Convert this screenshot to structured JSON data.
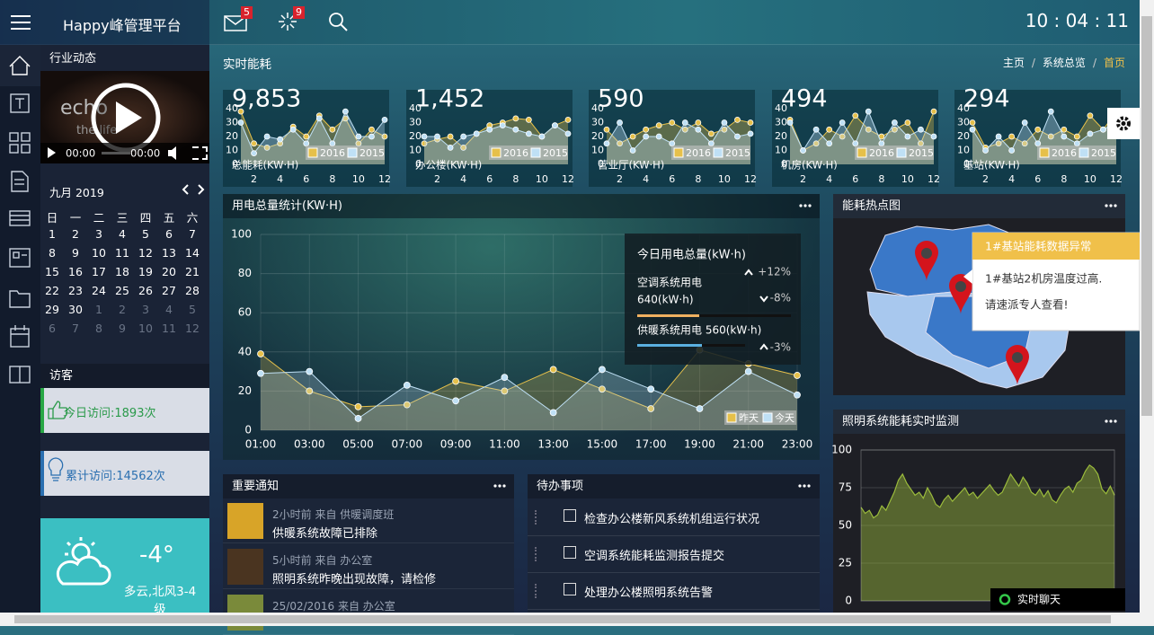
{
  "header": {
    "brand": "Happy峰管理平台",
    "mail_badge": "5",
    "alert_badge": "9",
    "clock": "10 : 04 : 11"
  },
  "sidebar": {
    "news_title": "行业动态",
    "video": {
      "caption": [
        "echo",
        "the life"
      ],
      "current": "00:00",
      "duration": "00:00"
    },
    "calendar": {
      "month": "九月 2019",
      "weekdays": [
        "日",
        "一",
        "二",
        "三",
        "四",
        "五",
        "六"
      ],
      "days": [
        1,
        2,
        3,
        4,
        5,
        6,
        7,
        8,
        9,
        10,
        11,
        12,
        13,
        14,
        15,
        16,
        17,
        18,
        19,
        20,
        21,
        22,
        23,
        24,
        25,
        26,
        27,
        28,
        29,
        30
      ],
      "next_month_days": [
        1,
        2,
        3,
        4,
        5,
        6,
        7,
        8,
        9,
        10,
        11,
        12
      ]
    },
    "visitors": {
      "title": "访客",
      "today": "今日访问:1893次",
      "total": "累计访问:14562次"
    },
    "weather": {
      "temperature": "-4°",
      "description": "多云,北风3-4级"
    }
  },
  "section": {
    "title": "实时能耗",
    "breadcrumb": [
      "主页",
      "系统总览",
      "首页"
    ],
    "separator": "/"
  },
  "chart_data": [
    {
      "type": "area",
      "title": "9,853",
      "xlabel": "总能耗(KW·H)",
      "x": [
        1,
        2,
        3,
        4,
        5,
        6,
        7,
        8,
        9,
        10,
        11,
        12
      ],
      "xlim": [
        1,
        12
      ],
      "xticks": [
        2,
        4,
        6,
        8,
        10,
        12
      ],
      "ylim": [
        0,
        40
      ],
      "yticks": [
        0,
        10,
        20,
        30,
        40
      ],
      "series": [
        {
          "name": "2016",
          "color": "#e6c04a",
          "values": [
            38,
            15,
            12,
            15,
            27,
            20,
            35,
            25,
            33,
            15,
            25,
            20
          ]
        },
        {
          "name": "2015",
          "color": "#bfe0f5",
          "values": [
            30,
            8,
            20,
            18,
            25,
            15,
            33,
            15,
            38,
            20,
            20,
            32
          ]
        }
      ]
    },
    {
      "type": "area",
      "title": "1,452",
      "xlabel": "办公楼(KW·H)",
      "x": [
        1,
        2,
        3,
        4,
        5,
        6,
        7,
        8,
        9,
        10,
        11,
        12
      ],
      "xlim": [
        1,
        12
      ],
      "xticks": [
        2,
        4,
        6,
        8,
        10,
        12
      ],
      "ylim": [
        0,
        40
      ],
      "yticks": [
        0,
        10,
        20,
        30,
        40
      ],
      "series": [
        {
          "name": "2016",
          "color": "#e6c04a",
          "values": [
            15,
            18,
            20,
            12,
            22,
            28,
            30,
            33,
            32,
            20,
            28,
            32
          ]
        },
        {
          "name": "2015",
          "color": "#bfe0f5",
          "values": [
            20,
            20,
            12,
            20,
            22,
            25,
            28,
            25,
            22,
            20,
            28,
            22
          ]
        }
      ]
    },
    {
      "type": "area",
      "title": "590",
      "xlabel": "营业厅(KW·H)",
      "x": [
        1,
        2,
        3,
        4,
        5,
        6,
        7,
        8,
        9,
        10,
        11,
        12
      ],
      "xlim": [
        1,
        12
      ],
      "xticks": [
        2,
        4,
        6,
        8,
        10,
        12
      ],
      "ylim": [
        0,
        40
      ],
      "yticks": [
        0,
        10,
        20,
        30,
        40
      ],
      "series": [
        {
          "name": "2016",
          "color": "#e6c04a",
          "values": [
            25,
            15,
            20,
            25,
            28,
            30,
            25,
            30,
            22,
            25,
            32,
            30
          ]
        },
        {
          "name": "2015",
          "color": "#bfe0f5",
          "values": [
            15,
            30,
            10,
            20,
            20,
            15,
            30,
            25,
            15,
            30,
            20,
            22
          ]
        }
      ]
    },
    {
      "type": "area",
      "title": "494",
      "xlabel": "机房(KW·H)",
      "x": [
        1,
        2,
        3,
        4,
        5,
        6,
        7,
        8,
        9,
        10,
        11,
        12
      ],
      "xlim": [
        1,
        12
      ],
      "xticks": [
        2,
        4,
        6,
        8,
        10,
        12
      ],
      "ylim": [
        0,
        40
      ],
      "yticks": [
        0,
        10,
        20,
        30,
        40
      ],
      "series": [
        {
          "name": "2016",
          "color": "#e6c04a",
          "values": [
            32,
            10,
            15,
            25,
            20,
            35,
            25,
            20,
            25,
            30,
            15,
            38
          ]
        },
        {
          "name": "2015",
          "color": "#bfe0f5",
          "values": [
            30,
            10,
            25,
            15,
            30,
            15,
            38,
            15,
            30,
            20,
            25,
            20
          ]
        }
      ]
    },
    {
      "type": "area",
      "title": "294",
      "xlabel": "基站(KW·H)",
      "x": [
        1,
        2,
        3,
        4,
        5,
        6,
        7,
        8,
        9,
        10,
        11,
        12
      ],
      "xlim": [
        1,
        12
      ],
      "xticks": [
        2,
        4,
        6,
        8,
        10,
        12
      ],
      "ylim": [
        0,
        40
      ],
      "yticks": [
        0,
        10,
        20,
        30,
        40
      ],
      "series": [
        {
          "name": "2016",
          "color": "#e6c04a",
          "values": [
            30,
            12,
            15,
            20,
            15,
            25,
            20,
            25,
            20,
            35,
            25,
            38
          ]
        },
        {
          "name": "2015",
          "color": "#bfe0f5",
          "values": [
            25,
            10,
            20,
            10,
            30,
            15,
            38,
            20,
            15,
            22,
            25,
            30
          ]
        }
      ]
    },
    {
      "type": "area",
      "title": "用电总量统计(KW·H)",
      "categories": [
        "01:00",
        "03:00",
        "05:00",
        "07:00",
        "09:00",
        "11:00",
        "13:00",
        "15:00",
        "17:00",
        "19:00",
        "21:00",
        "23:00"
      ],
      "ylim": [
        0,
        100
      ],
      "yticks": [
        0,
        20,
        40,
        60,
        80,
        100
      ],
      "grid": true,
      "legend": "bottom-right",
      "series": [
        {
          "name": "昨天",
          "color": "#e6c04a",
          "values": [
            39,
            20,
            12,
            13,
            25,
            20,
            31,
            21,
            11,
            41,
            34,
            28
          ]
        },
        {
          "name": "今天",
          "color": "#bfe0f5",
          "values": [
            29,
            30,
            6,
            23,
            15,
            27,
            9,
            31,
            21,
            11,
            30,
            18
          ]
        }
      ]
    },
    {
      "type": "area",
      "title": "照明系统能耗实时监测",
      "color": "#9bbb3c",
      "ylim": [
        0,
        100
      ],
      "yticks": [
        0,
        25,
        50,
        75,
        100
      ],
      "grid": true,
      "values": [
        62,
        58,
        60,
        55,
        57,
        63,
        60,
        66,
        72,
        80,
        84,
        78,
        74,
        70,
        72,
        68,
        75,
        70,
        64,
        62,
        67,
        70,
        66,
        69,
        72,
        75,
        70,
        72,
        68,
        71,
        74,
        77,
        73,
        70,
        72,
        78,
        84,
        80,
        76,
        82,
        78,
        72,
        70,
        74,
        69,
        73,
        67,
        65,
        70,
        74,
        76,
        72,
        78,
        80,
        86,
        90,
        88,
        84,
        74,
        71,
        76,
        70
      ]
    }
  ],
  "tooltip": {
    "title": "今日用电总量(kW·h)",
    "change": "+12%",
    "items": [
      {
        "name": "空调系统用电",
        "value": "640(kW·h)",
        "change": "-8%"
      },
      {
        "name": "供暖系统用电 560(kW·h)",
        "change": "-3%"
      }
    ]
  },
  "map": {
    "title": "能耗热点图",
    "alert": {
      "title": "1#基站能耗数据异常",
      "lines": [
        "1#基站2机房温度过高.",
        "请速派专人查看!"
      ]
    }
  },
  "notices": {
    "title": "重要通知",
    "items": [
      {
        "meta": "2小时前 来自 供暖调度班",
        "title": "供暖系统故障已排除"
      },
      {
        "meta": "5小时前 来自 办公室",
        "title": "照明系统昨晚出现故障，请检修"
      },
      {
        "meta": "25/02/2016 来自 办公室"
      }
    ]
  },
  "todos": {
    "title": "待办事项",
    "items": [
      "检查办公楼新风系统机组运行状况",
      "空调系统能耗监测报告提交",
      "处理办公楼照明系统告警"
    ]
  },
  "chat": {
    "label": "实时聊天"
  }
}
